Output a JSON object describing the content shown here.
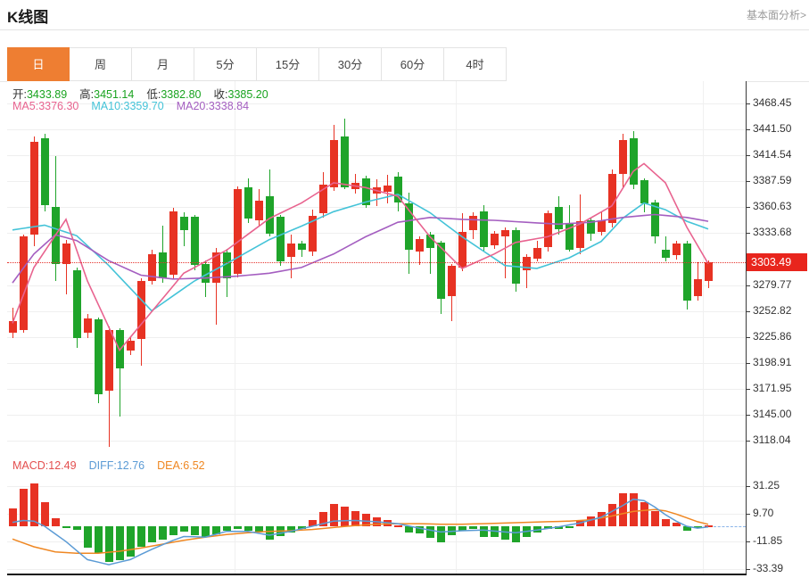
{
  "page": {
    "title": "K线图",
    "link": "基本面分析>"
  },
  "tabs": {
    "items": [
      "日",
      "周",
      "月",
      "5分",
      "15分",
      "30分",
      "60分",
      "4时"
    ],
    "active_index": 0
  },
  "price_tag": "3303.49",
  "colors": {
    "up": "#e73223",
    "down": "#1fa42a",
    "ma5": "#e8638f",
    "ma10": "#44c3d8",
    "ma20": "#a45ec0",
    "macd": "#e34f4f",
    "diff": "#5b9bd5",
    "dea": "#ef8722",
    "tab_active": "#ee7e32",
    "price_tag": "#e8251d",
    "grid": "#efefef",
    "axis": "#333333",
    "value_green": "#19a31f"
  },
  "chart_data": [
    {
      "type": "candlestick",
      "title": "K线图",
      "period_active": "日",
      "y_axis_labels": [
        3468.45,
        3441.5,
        3414.54,
        3387.59,
        3360.63,
        3333.68,
        3279.77,
        3252.82,
        3225.86,
        3198.91,
        3171.95,
        3145.0,
        3118.04
      ],
      "current_price": 3303.49,
      "grid": true,
      "info_ohlc": [
        {
          "label": "开:",
          "value": "3433.89"
        },
        {
          "label": "高:",
          "value": "3451.14"
        },
        {
          "label": "低:",
          "value": "3382.80"
        },
        {
          "label": "收:",
          "value": "3385.20"
        }
      ],
      "info_ma": [
        {
          "label": "MA5:",
          "value": "3376.30",
          "color_key": "ma5"
        },
        {
          "label": "MA10:",
          "value": "3359.70",
          "color_key": "ma10"
        },
        {
          "label": "MA20:",
          "value": "3338.84",
          "color_key": "ma20"
        }
      ],
      "candles": [
        [
          3230,
          3256,
          3225,
          3242
        ],
        [
          3233,
          3332,
          3230,
          3330
        ],
        [
          3332,
          3434,
          3320,
          3429
        ],
        [
          3432,
          3437,
          3356,
          3363
        ],
        [
          3361,
          3414,
          3284,
          3302
        ],
        [
          3302,
          3327,
          3270,
          3323
        ],
        [
          3295,
          3298,
          3214,
          3225
        ],
        [
          3230,
          3250,
          3225,
          3245
        ],
        [
          3244,
          3246,
          3157,
          3166
        ],
        [
          3170,
          3237,
          3112,
          3233
        ],
        [
          3233,
          3235,
          3143,
          3193
        ],
        [
          3212,
          3226,
          3207,
          3222
        ],
        [
          3224,
          3287,
          3196,
          3284
        ],
        [
          3284,
          3316,
          3280,
          3312
        ],
        [
          3314,
          3341,
          3282,
          3287
        ],
        [
          3290,
          3360,
          3287,
          3356
        ],
        [
          3351,
          3355,
          3320,
          3337
        ],
        [
          3351,
          3353,
          3295,
          3301
        ],
        [
          3302,
          3305,
          3267,
          3282
        ],
        [
          3282,
          3318,
          3239,
          3314
        ],
        [
          3314,
          3317,
          3267,
          3287
        ],
        [
          3291,
          3382,
          3288,
          3379
        ],
        [
          3381,
          3391,
          3344,
          3349
        ],
        [
          3347,
          3379,
          3341,
          3367
        ],
        [
          3372,
          3400,
          3330,
          3333
        ],
        [
          3351,
          3353,
          3300,
          3304
        ],
        [
          3309,
          3332,
          3287,
          3323
        ],
        [
          3323,
          3326,
          3309,
          3316
        ],
        [
          3315,
          3358,
          3310,
          3352
        ],
        [
          3354,
          3397,
          3350,
          3384
        ],
        [
          3381,
          3446,
          3378,
          3430
        ],
        [
          3434,
          3453,
          3379,
          3381
        ],
        [
          3379,
          3395,
          3375,
          3386
        ],
        [
          3391,
          3393,
          3360,
          3363
        ],
        [
          3375,
          3390,
          3362,
          3381
        ],
        [
          3377,
          3394,
          3365,
          3383
        ],
        [
          3392,
          3397,
          3356,
          3366
        ],
        [
          3365,
          3376,
          3291,
          3316
        ],
        [
          3315,
          3330,
          3301,
          3328
        ],
        [
          3332,
          3335,
          3291,
          3318
        ],
        [
          3324,
          3326,
          3250,
          3265
        ],
        [
          3268,
          3302,
          3242,
          3300
        ],
        [
          3298,
          3354,
          3294,
          3335
        ],
        [
          3337,
          3355,
          3328,
          3352
        ],
        [
          3356,
          3363,
          3315,
          3319
        ],
        [
          3321,
          3336,
          3317,
          3333
        ],
        [
          3330,
          3340,
          3287,
          3337
        ],
        [
          3337,
          3340,
          3273,
          3281
        ],
        [
          3295,
          3312,
          3277,
          3309
        ],
        [
          3307,
          3326,
          3304,
          3318
        ],
        [
          3319,
          3357,
          3315,
          3354
        ],
        [
          3361,
          3372,
          3332,
          3338
        ],
        [
          3344,
          3363,
          3315,
          3316
        ],
        [
          3318,
          3374,
          3312,
          3346
        ],
        [
          3347,
          3350,
          3326,
          3333
        ],
        [
          3335,
          3356,
          3331,
          3347
        ],
        [
          3344,
          3400,
          3340,
          3395
        ],
        [
          3395,
          3437,
          3381,
          3430
        ],
        [
          3432,
          3440,
          3379,
          3384
        ],
        [
          3389,
          3391,
          3355,
          3365
        ],
        [
          3366,
          3368,
          3323,
          3330
        ],
        [
          3316,
          3330,
          3304,
          3308
        ],
        [
          3311,
          3326,
          3306,
          3323
        ],
        [
          3323,
          3326,
          3254,
          3264
        ],
        [
          3268,
          3303,
          3264,
          3286
        ],
        [
          3284,
          3305,
          3277,
          3303.49
        ]
      ],
      "ma5_keypoints": [
        [
          0,
          3240
        ],
        [
          2,
          3298
        ],
        [
          5,
          3348
        ],
        [
          7,
          3284
        ],
        [
          10,
          3212
        ],
        [
          13,
          3252
        ],
        [
          16,
          3292
        ],
        [
          20,
          3316
        ],
        [
          24,
          3349
        ],
        [
          27,
          3365
        ],
        [
          30,
          3386
        ],
        [
          33,
          3381
        ],
        [
          36,
          3372
        ],
        [
          39,
          3330
        ],
        [
          42,
          3297
        ],
        [
          45,
          3312
        ],
        [
          47,
          3324
        ],
        [
          50,
          3330
        ],
        [
          53,
          3343
        ],
        [
          56,
          3362
        ],
        [
          58,
          3398
        ],
        [
          59,
          3406
        ],
        [
          61,
          3386
        ],
        [
          63,
          3340
        ],
        [
          65,
          3302
        ]
      ],
      "ma10_keypoints": [
        [
          0,
          3337
        ],
        [
          3,
          3342
        ],
        [
          6,
          3331
        ],
        [
          9,
          3300
        ],
        [
          13,
          3253
        ],
        [
          17,
          3284
        ],
        [
          20,
          3302
        ],
        [
          24,
          3327
        ],
        [
          27,
          3341
        ],
        [
          30,
          3356
        ],
        [
          33,
          3366
        ],
        [
          36,
          3374
        ],
        [
          39,
          3355
        ],
        [
          42,
          3330
        ],
        [
          46,
          3300
        ],
        [
          49,
          3297
        ],
        [
          52,
          3308
        ],
        [
          55,
          3325
        ],
        [
          57,
          3349
        ],
        [
          59,
          3365
        ],
        [
          61,
          3358
        ],
        [
          63,
          3346
        ],
        [
          65,
          3338
        ]
      ],
      "ma20_keypoints": [
        [
          0,
          3282
        ],
        [
          2,
          3312
        ],
        [
          4,
          3332
        ],
        [
          6,
          3326
        ],
        [
          9,
          3305
        ],
        [
          12,
          3290
        ],
        [
          15,
          3286
        ],
        [
          18,
          3287
        ],
        [
          21,
          3289
        ],
        [
          24,
          3292
        ],
        [
          27,
          3298
        ],
        [
          30,
          3312
        ],
        [
          33,
          3330
        ],
        [
          36,
          3345
        ],
        [
          39,
          3350
        ],
        [
          42,
          3348
        ],
        [
          45,
          3347
        ],
        [
          48,
          3345
        ],
        [
          51,
          3343
        ],
        [
          54,
          3345
        ],
        [
          57,
          3350
        ],
        [
          60,
          3353
        ],
        [
          63,
          3350
        ],
        [
          65,
          3346
        ]
      ]
    },
    {
      "type": "bar",
      "title": "MACD",
      "y_axis_labels": [
        31.25,
        9.7,
        -11.85,
        -33.39
      ],
      "grid": true,
      "info": [
        {
          "label": "MACD:",
          "value": "12.49",
          "color_key": "macd"
        },
        {
          "label": "DIFF:",
          "value": "12.76",
          "color_key": "diff"
        },
        {
          "label": "DEA:",
          "value": "6.52",
          "color_key": "dea"
        }
      ],
      "hist": [
        14,
        29,
        33,
        18.5,
        6.5,
        -1,
        -3,
        -17,
        -21,
        -28,
        -26.5,
        -24,
        -16,
        -12.5,
        -10.5,
        -7,
        -4.5,
        -7,
        -8.5,
        -6,
        -3.5,
        -2,
        -3.5,
        -4.5,
        -10.5,
        -8,
        -5,
        -2,
        5,
        11,
        17.5,
        15,
        12,
        10,
        7,
        5,
        1,
        -4.6,
        -5.8,
        -9.3,
        -12.7,
        -7,
        -3.5,
        -2.3,
        -8.1,
        -8.7,
        -10.4,
        -12.7,
        -8.1,
        -4.6,
        -2.3,
        -2.3,
        -1,
        4,
        7.5,
        11,
        17.4,
        25.5,
        25.9,
        18.5,
        12,
        5.8,
        2.8,
        -3.5,
        -1,
        0.5
      ],
      "diff_keypoints": [
        [
          0,
          3
        ],
        [
          1,
          4.5
        ],
        [
          2,
          4
        ],
        [
          3,
          0
        ],
        [
          5,
          -12
        ],
        [
          7,
          -26
        ],
        [
          9,
          -30
        ],
        [
          11,
          -26
        ],
        [
          13,
          -18
        ],
        [
          15,
          -11
        ],
        [
          16,
          -8
        ],
        [
          18,
          -8.5
        ],
        [
          20,
          -4
        ],
        [
          22,
          -4
        ],
        [
          24,
          -7
        ],
        [
          26,
          -4
        ],
        [
          28,
          0
        ],
        [
          30,
          4
        ],
        [
          32,
          4.5
        ],
        [
          34,
          3.5
        ],
        [
          36,
          2
        ],
        [
          38,
          -1.5
        ],
        [
          40,
          -4.5
        ],
        [
          42,
          -3.5
        ],
        [
          44,
          -3
        ],
        [
          46,
          -4.5
        ],
        [
          47,
          -5
        ],
        [
          49,
          -3
        ],
        [
          51,
          -0.5
        ],
        [
          53,
          2.5
        ],
        [
          55,
          7
        ],
        [
          57,
          16
        ],
        [
          58,
          21
        ],
        [
          59,
          20
        ],
        [
          60,
          15
        ],
        [
          61,
          9
        ],
        [
          62,
          4
        ],
        [
          63,
          0
        ],
        [
          64,
          -1.5
        ],
        [
          65,
          -0.5
        ]
      ],
      "dea_keypoints": [
        [
          0,
          -10
        ],
        [
          2,
          -16
        ],
        [
          4,
          -20
        ],
        [
          6,
          -21
        ],
        [
          8,
          -21
        ],
        [
          10,
          -19.5
        ],
        [
          12,
          -17
        ],
        [
          14,
          -14
        ],
        [
          16,
          -11
        ],
        [
          18,
          -8.5
        ],
        [
          20,
          -6.5
        ],
        [
          22,
          -5
        ],
        [
          24,
          -4
        ],
        [
          26,
          -3.5
        ],
        [
          28,
          -2.5
        ],
        [
          30,
          -1
        ],
        [
          32,
          0.5
        ],
        [
          34,
          1.5
        ],
        [
          36,
          2
        ],
        [
          38,
          2
        ],
        [
          40,
          1.5
        ],
        [
          42,
          1.5
        ],
        [
          44,
          2
        ],
        [
          46,
          2.5
        ],
        [
          48,
          3
        ],
        [
          50,
          3.5
        ],
        [
          52,
          4
        ],
        [
          54,
          5
        ],
        [
          56,
          8
        ],
        [
          58,
          11.5
        ],
        [
          60,
          13
        ],
        [
          61,
          12
        ],
        [
          62,
          9.5
        ],
        [
          63,
          6.5
        ],
        [
          64,
          3.5
        ],
        [
          65,
          1.5
        ]
      ]
    }
  ]
}
